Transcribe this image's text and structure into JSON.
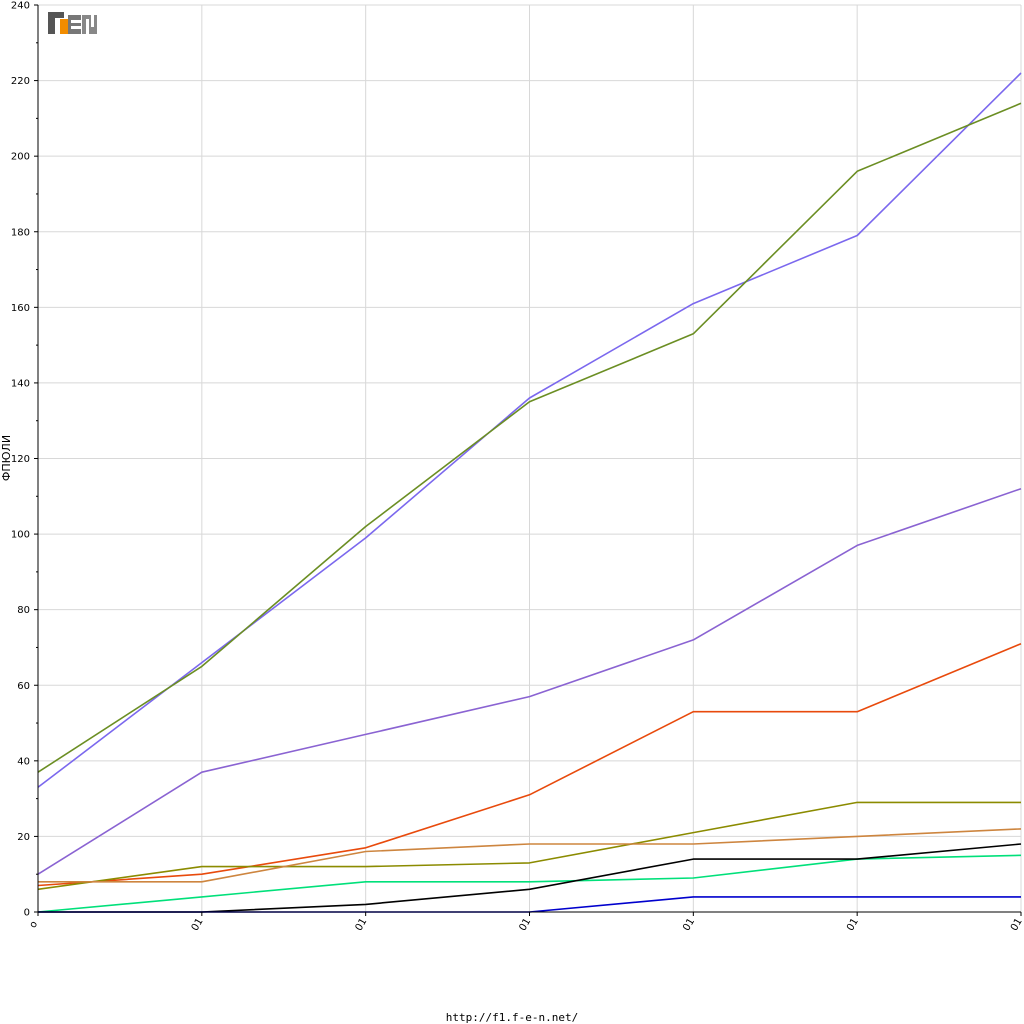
{
  "footer": {
    "url": "http://f1.f-e-n.net/"
  },
  "logo": {
    "text": "FEN"
  },
  "colors": {
    "grid": "#d8d8d8",
    "axis": "#000000",
    "logo_dark": "#555555",
    "logo_accent": "#f28c00"
  },
  "chart_data": {
    "type": "line",
    "title": "",
    "xlabel": "",
    "ylabel": "ФПЮЛИ",
    "ylim": [
      0,
      240
    ],
    "y_ticks": [
      0,
      20,
      40,
      60,
      80,
      100,
      120,
      140,
      160,
      180,
      200,
      220,
      240
    ],
    "categories": [
      "o",
      "01",
      "01",
      "01",
      "01",
      "01",
      "01"
    ],
    "grid": true,
    "legend": "none",
    "series": [
      {
        "color": "#7b68ee",
        "values": [
          33,
          66,
          99,
          136,
          161,
          179,
          222
        ]
      },
      {
        "color": "#6b8e23",
        "values": [
          37,
          65,
          102,
          135,
          153,
          196,
          214
        ]
      },
      {
        "color": "#8a63d2",
        "values": [
          10,
          37,
          47,
          57,
          72,
          97,
          112
        ]
      },
      {
        "color": "#e84a0c",
        "values": [
          7,
          10,
          17,
          31,
          53,
          53,
          71
        ]
      },
      {
        "color": "#8b8b00",
        "values": [
          6,
          12,
          12,
          13,
          21,
          29,
          29
        ]
      },
      {
        "color": "#cd853f",
        "values": [
          8,
          8,
          16,
          18,
          18,
          20,
          22
        ]
      },
      {
        "color": "#00e07a",
        "values": [
          0,
          4,
          8,
          8,
          9,
          14,
          15
        ]
      },
      {
        "color": "#000000",
        "values": [
          0,
          0,
          2,
          6,
          14,
          14,
          18
        ]
      },
      {
        "color": "#0000cd",
        "values": [
          0,
          0,
          0,
          0,
          4,
          4,
          4
        ]
      }
    ]
  }
}
